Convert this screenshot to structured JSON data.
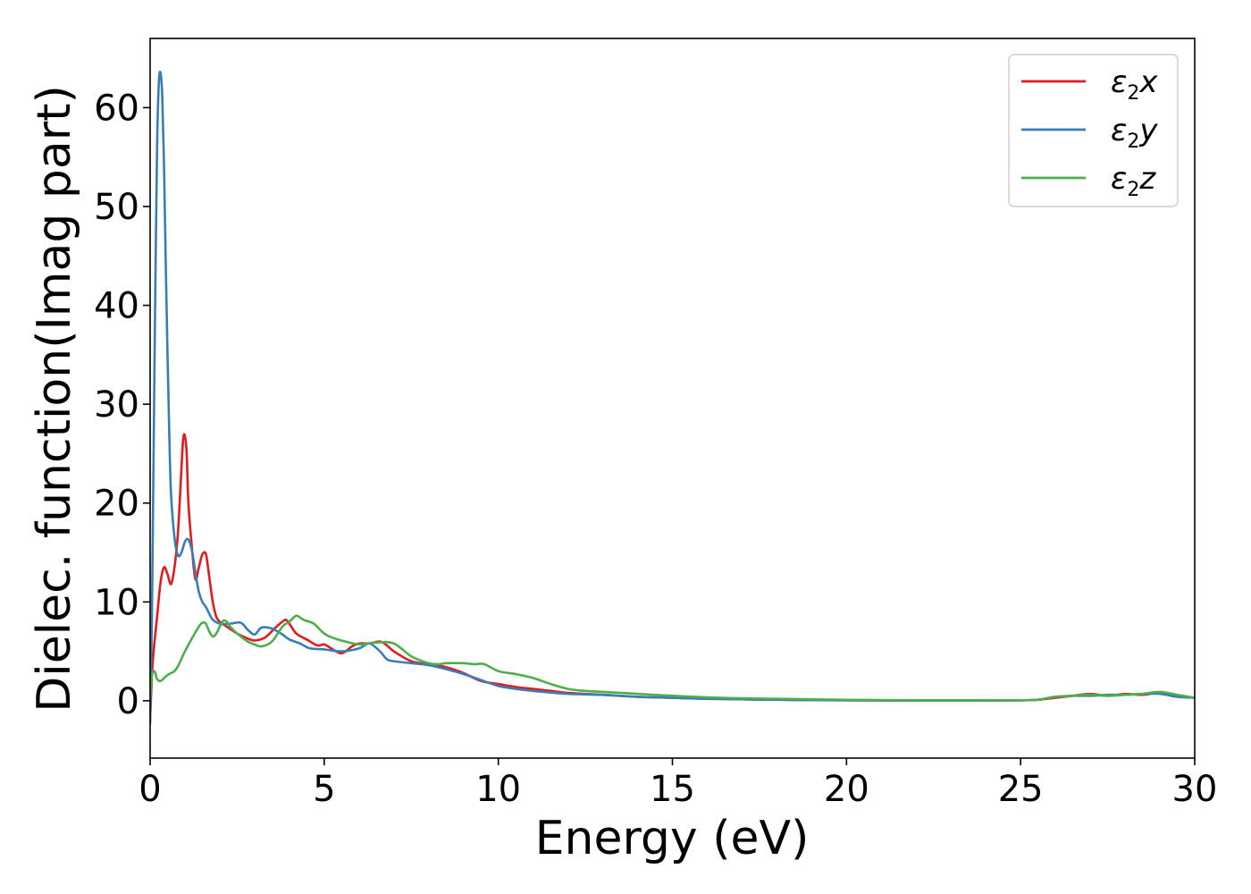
{
  "chart_data": {
    "type": "line",
    "xlabel": "Energy (eV)",
    "ylabel": "Dielec. function(Imag part)",
    "xlim": [
      0,
      30
    ],
    "ylim": [
      -5.8,
      67
    ],
    "xticks": [
      0,
      5,
      10,
      15,
      20,
      25,
      30
    ],
    "yticks": [
      0,
      10,
      20,
      30,
      40,
      50,
      60
    ],
    "grid": false,
    "legend_position": "top-right",
    "series": [
      {
        "name": "ε2x",
        "legend": {
          "base": "ε",
          "sub": "2",
          "tail": "x"
        },
        "color": "#e41a1c",
        "x": [
          0.0,
          0.05,
          0.1,
          0.2,
          0.3,
          0.4,
          0.5,
          0.6,
          0.7,
          0.8,
          0.9,
          0.95,
          1.0,
          1.05,
          1.1,
          1.2,
          1.3,
          1.4,
          1.5,
          1.6,
          1.7,
          1.8,
          1.9,
          2.0,
          2.2,
          2.5,
          2.8,
          3.0,
          3.3,
          3.6,
          3.8,
          3.9,
          4.0,
          4.2,
          4.5,
          4.8,
          5.0,
          5.2,
          5.5,
          5.8,
          6.0,
          6.3,
          6.6,
          6.8,
          7.0,
          7.5,
          8.0,
          8.5,
          9.0,
          9.5,
          10.0,
          10.5,
          11.0,
          11.5,
          12.0,
          13.0,
          14.0,
          15.0,
          16.0,
          17.0,
          18.0,
          20.0,
          22.0,
          24.0,
          25.0,
          25.5,
          26.0,
          26.5,
          27.0,
          27.5,
          28.0,
          28.5,
          29.0,
          29.5,
          30.0
        ],
        "y": [
          -2.0,
          2.5,
          5.0,
          8.5,
          12.0,
          13.5,
          12.8,
          11.8,
          13.5,
          17.0,
          23.5,
          26.5,
          26.8,
          25.0,
          20.0,
          15.5,
          12.3,
          13.5,
          14.8,
          14.9,
          12.5,
          10.0,
          8.5,
          8.0,
          7.5,
          6.8,
          6.3,
          6.1,
          6.4,
          7.4,
          8.0,
          8.2,
          7.8,
          6.8,
          6.2,
          5.6,
          5.7,
          5.3,
          4.8,
          5.5,
          5.8,
          5.8,
          6.0,
          5.6,
          5.0,
          4.0,
          3.7,
          3.4,
          2.8,
          2.0,
          1.7,
          1.4,
          1.2,
          1.0,
          0.8,
          0.6,
          0.4,
          0.3,
          0.2,
          0.15,
          0.1,
          0.05,
          0.02,
          0.02,
          0.05,
          0.1,
          0.3,
          0.5,
          0.7,
          0.5,
          0.7,
          0.6,
          0.8,
          0.5,
          0.3
        ]
      },
      {
        "name": "ε2y",
        "legend": {
          "base": "ε",
          "sub": "2",
          "tail": "y"
        },
        "color": "#377eb8",
        "x": [
          0.0,
          0.05,
          0.1,
          0.15,
          0.2,
          0.25,
          0.3,
          0.35,
          0.4,
          0.45,
          0.5,
          0.55,
          0.6,
          0.7,
          0.8,
          0.9,
          1.0,
          1.1,
          1.2,
          1.3,
          1.4,
          1.5,
          1.6,
          1.7,
          1.8,
          2.0,
          2.3,
          2.6,
          2.8,
          3.0,
          3.2,
          3.5,
          3.8,
          4.0,
          4.3,
          4.6,
          5.0,
          5.5,
          6.0,
          6.3,
          6.6,
          6.8,
          7.0,
          7.5,
          8.0,
          8.5,
          9.0,
          9.5,
          10.0,
          10.5,
          11.0,
          12.0,
          13.0,
          14.0,
          15.0,
          16.0,
          17.0,
          18.0,
          20.0,
          22.0,
          24.0,
          25.0,
          25.5,
          26.0,
          26.5,
          27.0,
          27.5,
          28.0,
          28.5,
          29.0,
          29.5,
          30.0
        ],
        "y": [
          -2.3,
          8.0,
          25.0,
          42.0,
          56.0,
          62.5,
          63.5,
          61.0,
          54.0,
          44.0,
          35.0,
          27.0,
          21.0,
          16.5,
          14.7,
          15.0,
          16.1,
          16.3,
          15.2,
          13.0,
          11.0,
          10.0,
          9.5,
          8.8,
          8.2,
          7.8,
          7.8,
          7.9,
          7.2,
          6.7,
          7.4,
          7.3,
          6.7,
          6.2,
          5.8,
          5.3,
          5.2,
          5.0,
          5.3,
          5.8,
          5.0,
          4.2,
          4.0,
          3.8,
          3.6,
          3.2,
          2.7,
          2.1,
          1.5,
          1.2,
          1.0,
          0.7,
          0.6,
          0.4,
          0.3,
          0.2,
          0.15,
          0.1,
          0.05,
          0.02,
          0.02,
          0.05,
          0.1,
          0.4,
          0.5,
          0.5,
          0.6,
          0.6,
          0.7,
          0.7,
          0.4,
          0.3
        ]
      },
      {
        "name": "ε2z",
        "legend": {
          "base": "ε",
          "sub": "2",
          "tail": "z"
        },
        "color": "#4daf4a",
        "x": [
          0.0,
          0.05,
          0.1,
          0.15,
          0.2,
          0.3,
          0.4,
          0.5,
          0.6,
          0.7,
          0.8,
          1.0,
          1.2,
          1.4,
          1.5,
          1.6,
          1.7,
          1.8,
          1.9,
          2.0,
          2.1,
          2.2,
          2.3,
          2.5,
          2.8,
          3.0,
          3.2,
          3.5,
          3.8,
          4.0,
          4.2,
          4.4,
          4.7,
          5.0,
          5.3,
          5.6,
          6.0,
          6.5,
          7.0,
          7.5,
          8.0,
          8.3,
          8.5,
          9.0,
          9.3,
          9.6,
          10.0,
          10.5,
          11.0,
          11.5,
          12.0,
          12.5,
          13.0,
          14.0,
          15.0,
          16.0,
          17.0,
          18.0,
          20.0,
          22.0,
          24.0,
          25.0,
          25.5,
          26.0,
          26.5,
          27.0,
          27.5,
          28.0,
          28.5,
          29.0,
          29.5,
          30.0
        ],
        "y": [
          0.5,
          2.5,
          3.0,
          2.8,
          2.2,
          2.0,
          2.3,
          2.6,
          2.8,
          3.0,
          3.5,
          5.0,
          6.3,
          7.5,
          7.9,
          7.8,
          7.0,
          6.5,
          6.8,
          7.5,
          8.1,
          8.0,
          7.5,
          6.8,
          6.0,
          5.7,
          5.5,
          6.0,
          7.5,
          8.0,
          8.6,
          8.2,
          7.8,
          6.8,
          6.3,
          6.0,
          5.7,
          5.9,
          5.8,
          4.5,
          3.8,
          3.7,
          3.8,
          3.8,
          3.7,
          3.7,
          3.0,
          2.7,
          2.3,
          1.7,
          1.2,
          1.0,
          0.9,
          0.7,
          0.5,
          0.35,
          0.25,
          0.2,
          0.1,
          0.05,
          0.05,
          0.05,
          0.1,
          0.4,
          0.5,
          0.6,
          0.5,
          0.6,
          0.7,
          0.9,
          0.6,
          0.3
        ]
      }
    ]
  }
}
